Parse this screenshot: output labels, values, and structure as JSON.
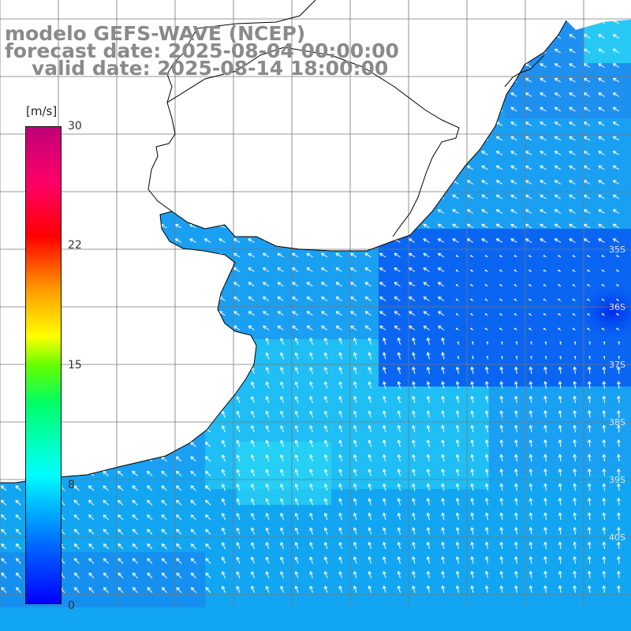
{
  "title": {
    "line1": "modelo GEFS-WAVE (NCEP)",
    "line2": "forecast date: 2025-08-04 00:00:00",
    "line3": "valid date: 2025-08-14 18:00:00"
  },
  "colorbar": {
    "unit": "[m/s]",
    "ticks": [
      "30",
      "22",
      "15",
      "8",
      "0"
    ],
    "tick_values": [
      30,
      22,
      15,
      8,
      0
    ],
    "range": [
      0,
      30
    ]
  },
  "latitude_labels": [
    "35S",
    "36S",
    "37S",
    "38S",
    "39S",
    "40S"
  ],
  "colors": {
    "land": "#ffffff",
    "grid": "#777777",
    "coast": "#000000",
    "arrow": "#ffffff",
    "title": "#8a8a8a"
  },
  "wind_field": {
    "description_units": "m/s",
    "max_speed_shown": 9,
    "arrow_direction": "north-west to west (blowing toward the coast)"
  }
}
